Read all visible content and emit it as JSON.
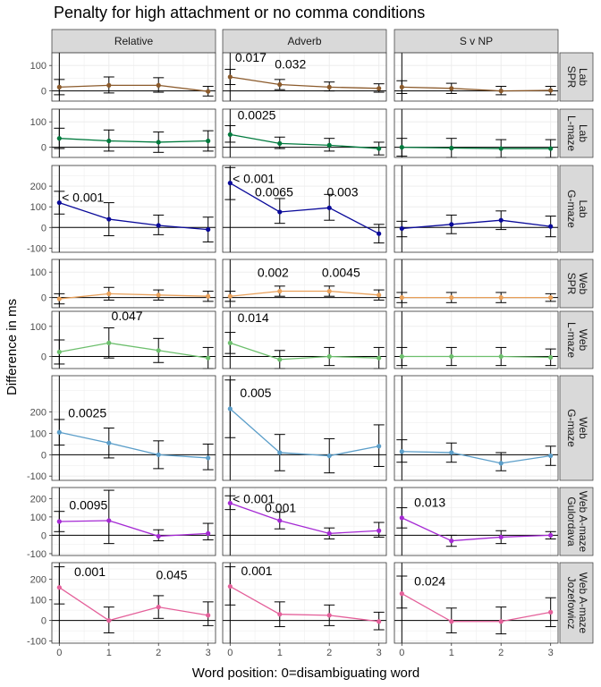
{
  "title": "Penalty for high attachment or no comma conditions",
  "chart_data": {
    "type": "line",
    "title": "Penalty for high attachment or no comma conditions",
    "xlabel": "Word position: 0=disambiguating word",
    "ylabel": "Difference in ms",
    "x": [
      0,
      1,
      2,
      3
    ],
    "x_ticks": [
      "0",
      "1",
      "2",
      "3"
    ],
    "columns": [
      "Relative",
      "Adverb",
      "S v NP"
    ],
    "grid": true,
    "rows": [
      {
        "label_lines": [
          "Lab",
          "SPR"
        ],
        "color": "#8B5A2B",
        "ylim": [
          -40,
          150
        ],
        "y_ticks": [
          "0",
          "100"
        ],
        "panels": [
          {
            "values": [
              15,
              22,
              22,
              -2
            ],
            "lower": [
              -15,
              -8,
              -5,
              -20
            ],
            "upper": [
              45,
              55,
              52,
              18
            ],
            "annotations": []
          },
          {
            "values": [
              55,
              25,
              15,
              10
            ],
            "lower": [
              25,
              5,
              0,
              -5
            ],
            "upper": [
              85,
              45,
              35,
              28
            ],
            "annotations": [
              {
                "text": "0.017",
                "x": 0.1,
                "y": 115
              },
              {
                "text": "0.032",
                "x": 0.9,
                "y": 88
              }
            ]
          },
          {
            "values": [
              15,
              10,
              0,
              2
            ],
            "lower": [
              -10,
              -10,
              -15,
              -15
            ],
            "upper": [
              40,
              30,
              18,
              18
            ],
            "annotations": []
          }
        ]
      },
      {
        "label_lines": [
          "Lab",
          "L-maze"
        ],
        "color": "#007A3D",
        "ylim": [
          -40,
          150
        ],
        "y_ticks": [
          "0",
          "100"
        ],
        "panels": [
          {
            "values": [
              35,
              25,
              20,
              25
            ],
            "lower": [
              -5,
              -15,
              -20,
              -15
            ],
            "upper": [
              75,
              68,
              60,
              65
            ],
            "annotations": []
          },
          {
            "values": [
              50,
              15,
              8,
              -5
            ],
            "lower": [
              20,
              -5,
              -15,
              -30
            ],
            "upper": [
              85,
              40,
              35,
              20
            ],
            "annotations": [
              {
                "text": "0.0025",
                "x": 0.15,
                "y": 110
              }
            ]
          },
          {
            "values": [
              0,
              -3,
              -5,
              -5
            ],
            "lower": [
              -35,
              -40,
              -40,
              -40
            ],
            "upper": [
              35,
              35,
              30,
              30
            ],
            "annotations": []
          }
        ]
      },
      {
        "label_lines": [
          "Lab",
          "G-maze"
        ],
        "color": "#0A0A9A",
        "ylim": [
          -120,
          300
        ],
        "y_ticks": [
          "-100",
          "0",
          "100",
          "200"
        ],
        "panels": [
          {
            "values": [
              120,
              40,
              10,
              -10
            ],
            "lower": [
              65,
              -40,
              -35,
              -70
            ],
            "upper": [
              175,
              120,
              60,
              50
            ],
            "annotations": [
              {
                "text": "< 0.001",
                "x": 0.05,
                "y": 125
              }
            ]
          },
          {
            "values": [
              215,
              75,
              95,
              -30
            ],
            "lower": [
              135,
              20,
              35,
              -75
            ],
            "upper": [
              290,
              140,
              160,
              15
            ],
            "annotations": [
              {
                "text": "< 0.001",
                "x": 0.05,
                "y": 215
              },
              {
                "text": "0.0065",
                "x": 0.5,
                "y": 150
              },
              {
                "text": "0.003",
                "x": 1.95,
                "y": 150
              }
            ]
          },
          {
            "values": [
              -5,
              15,
              35,
              5
            ],
            "lower": [
              -45,
              -30,
              -10,
              -45
            ],
            "upper": [
              30,
              60,
              80,
              55
            ],
            "annotations": []
          }
        ]
      },
      {
        "label_lines": [
          "Web",
          "SPR"
        ],
        "color": "#E8A05A",
        "ylim": [
          -40,
          150
        ],
        "y_ticks": [
          "0",
          "100"
        ],
        "panels": [
          {
            "values": [
              -5,
              15,
              10,
              5
            ],
            "lower": [
              -25,
              -10,
              -10,
              -15
            ],
            "upper": [
              15,
              40,
              30,
              25
            ],
            "annotations": []
          },
          {
            "values": [
              5,
              25,
              25,
              10
            ],
            "lower": [
              -15,
              5,
              5,
              -10
            ],
            "upper": [
              25,
              45,
              45,
              30
            ],
            "annotations": [
              {
                "text": "0.002",
                "x": 0.55,
                "y": 82
              },
              {
                "text": "0.0045",
                "x": 1.85,
                "y": 82
              }
            ]
          },
          {
            "values": [
              0,
              0,
              0,
              0
            ],
            "lower": [
              -20,
              -20,
              -20,
              -15
            ],
            "upper": [
              20,
              20,
              20,
              15
            ],
            "annotations": []
          }
        ]
      },
      {
        "label_lines": [
          "Web",
          "L-maze"
        ],
        "color": "#6DBF6D",
        "ylim": [
          -40,
          150
        ],
        "y_ticks": [
          "0",
          "100"
        ],
        "panels": [
          {
            "values": [
              15,
              45,
              20,
              -5
            ],
            "lower": [
              -25,
              -5,
              -20,
              -40
            ],
            "upper": [
              55,
              95,
              60,
              30
            ],
            "annotations": [
              {
                "text": "0.047",
                "x": 1.05,
                "y": 120
              }
            ]
          },
          {
            "values": [
              45,
              -10,
              0,
              -5
            ],
            "lower": [
              10,
              -40,
              -30,
              -40
            ],
            "upper": [
              80,
              20,
              30,
              30
            ],
            "annotations": [
              {
                "text": "0.014",
                "x": 0.15,
                "y": 115
              }
            ]
          },
          {
            "values": [
              0,
              0,
              0,
              -3
            ],
            "lower": [
              -30,
              -30,
              -30,
              -30
            ],
            "upper": [
              30,
              30,
              30,
              25
            ],
            "annotations": []
          }
        ]
      },
      {
        "label_lines": [
          "Web",
          "G-maze"
        ],
        "color": "#5B9EC9",
        "ylim": [
          -120,
          370
        ],
        "y_ticks": [
          "-100",
          "0",
          "100",
          "200"
        ],
        "panels": [
          {
            "values": [
              105,
              55,
              0,
              -15
            ],
            "lower": [
              45,
              -15,
              -65,
              -70
            ],
            "upper": [
              165,
              125,
              65,
              50
            ],
            "annotations": [
              {
                "text": "0.0025",
                "x": 0.18,
                "y": 175
              }
            ]
          },
          {
            "values": [
              215,
              10,
              -5,
              40
            ],
            "lower": [
              80,
              -75,
              -85,
              -55
            ],
            "upper": [
              350,
              95,
              75,
              140
            ],
            "annotations": [
              {
                "text": "0.005",
                "x": 0.2,
                "y": 270
              }
            ]
          },
          {
            "values": [
              15,
              10,
              -40,
              -5
            ],
            "lower": [
              -35,
              -35,
              -75,
              -50
            ],
            "upper": [
              70,
              55,
              10,
              40
            ],
            "annotations": []
          }
        ]
      },
      {
        "label_lines": [
          "Web A-maze",
          "Gulordava"
        ],
        "color": "#A52AD4",
        "ylim": [
          -110,
          260
        ],
        "y_ticks": [
          "-100",
          "0",
          "100",
          "200"
        ],
        "panels": [
          {
            "values": [
              75,
              80,
              -5,
              10
            ],
            "lower": [
              20,
              -45,
              -30,
              -25
            ],
            "upper": [
              130,
              245,
              30,
              65
            ],
            "annotations": [
              {
                "text": "0.0095",
                "x": 0.2,
                "y": 140
              }
            ]
          },
          {
            "values": [
              175,
              80,
              10,
              25
            ],
            "lower": [
              140,
              35,
              -20,
              -10
            ],
            "upper": [
              215,
              125,
              40,
              70
            ],
            "annotations": [
              {
                "text": "< 0.001",
                "x": 0.05,
                "y": 175
              },
              {
                "text": "0.001",
                "x": 0.7,
                "y": 125
              }
            ]
          },
          {
            "values": [
              95,
              -30,
              -10,
              0
            ],
            "lower": [
              40,
              -60,
              -45,
              -20
            ],
            "upper": [
              150,
              0,
              25,
              20
            ],
            "annotations": [
              {
                "text": "0.013",
                "x": 0.25,
                "y": 155
              }
            ]
          }
        ]
      },
      {
        "label_lines": [
          "Web A-maze",
          "Jozefowicz"
        ],
        "color": "#E4609A",
        "ylim": [
          -110,
          280
        ],
        "y_ticks": [
          "-100",
          "0",
          "100",
          "200"
        ],
        "panels": [
          {
            "values": [
              160,
              0,
              65,
              25
            ],
            "lower": [
              80,
              -60,
              10,
              -25
            ],
            "upper": [
              260,
              65,
              120,
              90
            ],
            "annotations": [
              {
                "text": "0.001",
                "x": 0.3,
                "y": 215
              },
              {
                "text": "0.045",
                "x": 1.95,
                "y": 200
              }
            ]
          },
          {
            "values": [
              165,
              30,
              25,
              -5
            ],
            "lower": [
              75,
              -30,
              -25,
              -45
            ],
            "upper": [
              260,
              90,
              75,
              40
            ],
            "annotations": [
              {
                "text": "0.001",
                "x": 0.22,
                "y": 220
              }
            ]
          },
          {
            "values": [
              130,
              -5,
              -5,
              40
            ],
            "lower": [
              60,
              -60,
              -65,
              -30
            ],
            "upper": [
              215,
              60,
              65,
              110
            ],
            "annotations": [
              {
                "text": "0.024",
                "x": 0.25,
                "y": 170
              }
            ]
          }
        ]
      }
    ]
  }
}
